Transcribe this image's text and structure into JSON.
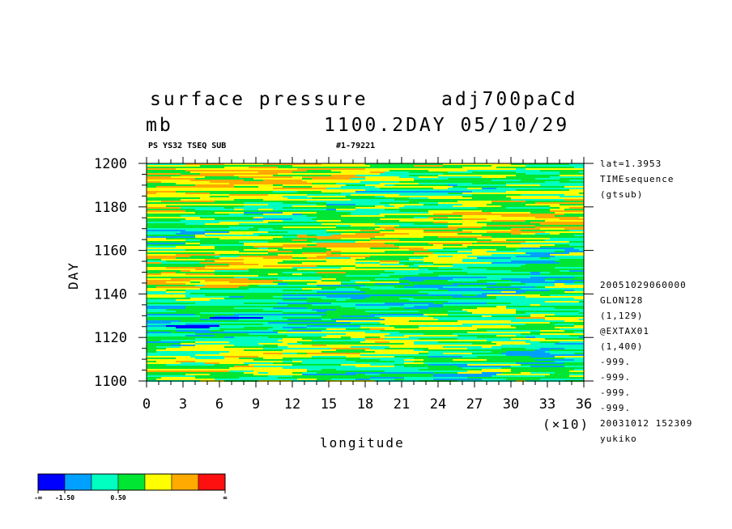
{
  "header": {
    "title_left": "surface pressure",
    "title_right": "adj700paCd",
    "units": "mb",
    "time_label": "1100.2DAY 05/10/29",
    "subtitle_left": "PS YS32 TSEQ SUB",
    "subtitle_right": "#1-79221"
  },
  "chart_data": {
    "type": "heatmap",
    "xlabel": "longitude",
    "ylabel": "DAY",
    "x_ticks": [
      "0",
      "3",
      "6",
      "9",
      "12",
      "15",
      "18",
      "21",
      "24",
      "27",
      "30",
      "33",
      "36"
    ],
    "x_scale_label": "(×10)",
    "y_ticks": [
      "1100",
      "1120",
      "1140",
      "1160",
      "1180",
      "1200"
    ],
    "xlim": [
      0,
      360
    ],
    "ylim": [
      1100,
      1200
    ],
    "colorbar": {
      "colors": [
        "#0000ff",
        "#00a0ff",
        "#00ffc0",
        "#00e632",
        "#ffff00",
        "#ffaa00",
        "#ff1010"
      ],
      "labels": [
        "-∞",
        "-1.50",
        "0.50",
        "∞"
      ]
    }
  },
  "info": {
    "lines_top": [
      "lat=1.3953",
      "TIMEsequence",
      "(gtsub)"
    ],
    "lines_bottom": [
      "20051029060000",
      "GLON128",
      "(1,129)",
      "@EXTAX01",
      "(1,400)",
      "-999.",
      "-999.",
      "-999.",
      "-999.",
      "20031012 152309",
      "yukiko"
    ]
  }
}
